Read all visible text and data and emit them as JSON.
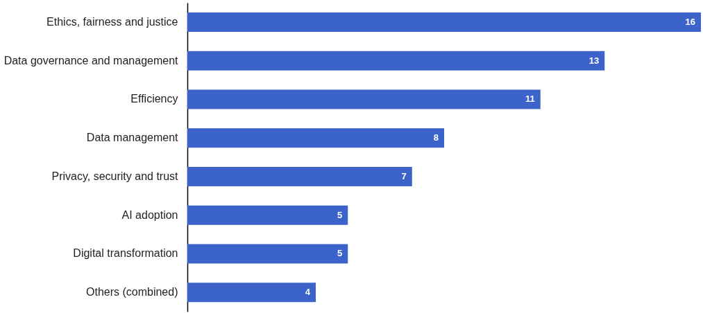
{
  "chart_data": {
    "type": "bar",
    "orientation": "horizontal",
    "categories": [
      "Ethics, fairness and justice",
      "Data governance and management",
      "Efficiency",
      "Data management",
      "Privacy, security and trust",
      "AI adoption",
      "Digital transformation",
      "Others (combined)"
    ],
    "values": [
      16,
      13,
      11,
      8,
      7,
      5,
      5,
      4
    ],
    "color": "#3b63c9",
    "xlim": [
      0,
      16
    ],
    "tick_labels": "y",
    "data_labels": true,
    "grid": false
  }
}
